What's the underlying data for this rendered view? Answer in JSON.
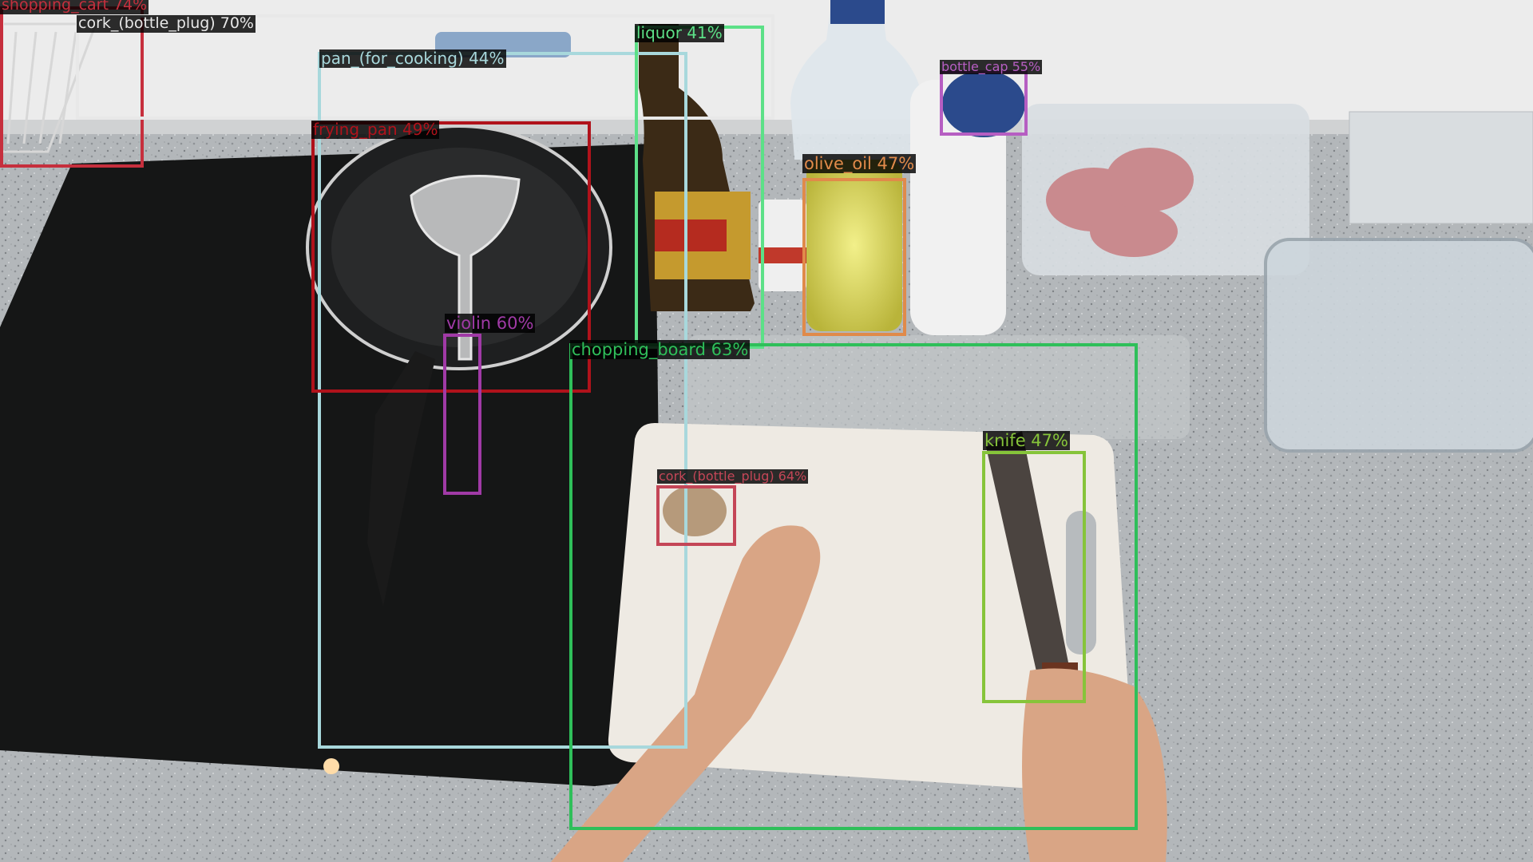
{
  "image": {
    "type": "object-detection-overlay",
    "scene": "kitchen countertop with induction hob, frying pan, bottles, chopping board and knife"
  },
  "detections": [
    {
      "id": "det-0",
      "label": "shopping_cart 74%",
      "color": "#c62f3d"
    },
    {
      "id": "det-1",
      "label": "cork_(bottle_plug) 70%",
      "color": "#e8e8e8"
    },
    {
      "id": "det-2",
      "label": "pan_(for_cooking) 44%",
      "color": "#a8d8dc"
    },
    {
      "id": "det-3",
      "label": "liquor 41%",
      "color": "#5ce087"
    },
    {
      "id": "det-4",
      "label": "bottle_cap 55%",
      "color": "#b65ec2"
    },
    {
      "id": "det-5",
      "label": "frying_pan 49%",
      "color": "#b0121b"
    },
    {
      "id": "det-6",
      "label": "olive_oil 47%",
      "color": "#e08a4a"
    },
    {
      "id": "det-7",
      "label": "violin 60%",
      "color": "#a03aa6"
    },
    {
      "id": "det-8",
      "label": "chopping_board 63%",
      "color": "#2fbf5a"
    },
    {
      "id": "det-9",
      "label": "knife 47%",
      "color": "#86c43a"
    },
    {
      "id": "det-10",
      "label": "cork_(bottle_plug) 64%",
      "color": "#c44657"
    }
  ]
}
